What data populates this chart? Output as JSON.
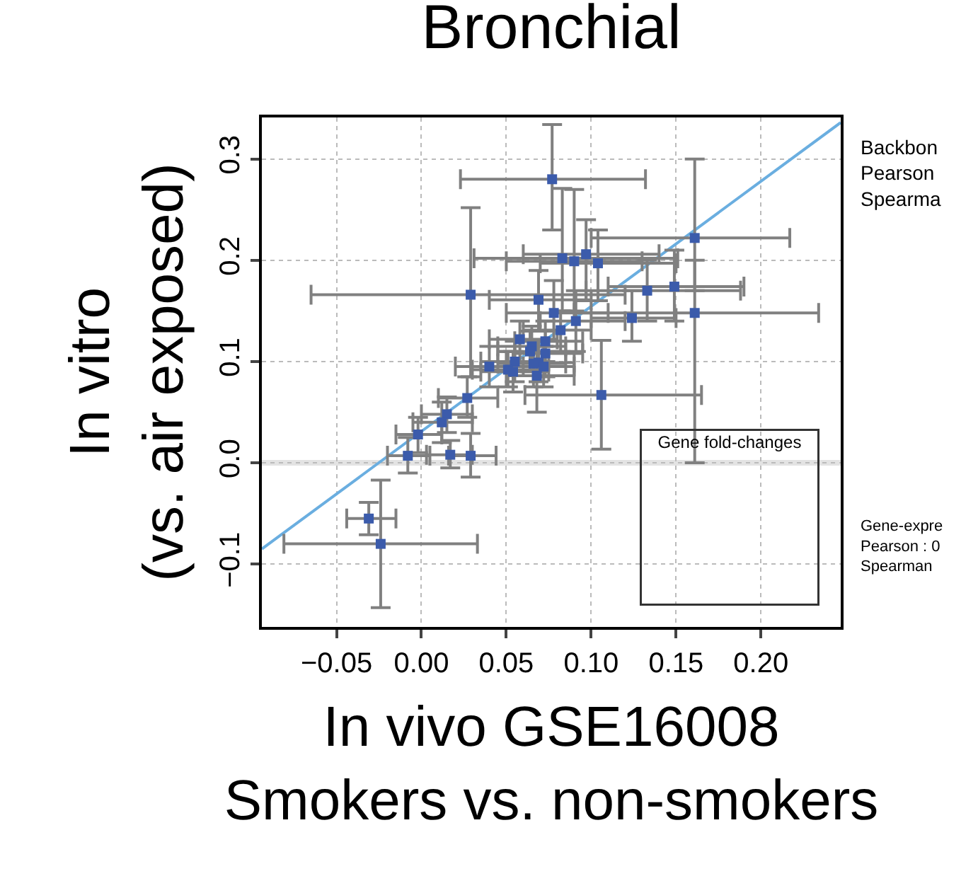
{
  "chart_data": [
    {
      "type": "scatter",
      "title": "Bronchial",
      "xlabel": "In vivo GSE16008\nSmokers vs. non-smokers",
      "ylabel": "In vitro\n(vs. air exposed)",
      "xlim": [
        -0.094,
        0.247
      ],
      "ylim": [
        -0.162,
        0.341
      ],
      "xticks": [
        {
          "value": -0.05,
          "label": "−0.05"
        },
        {
          "value": 0,
          "label": "0.00"
        },
        {
          "value": 0.05,
          "label": "0.05"
        },
        {
          "value": 0.1,
          "label": "0.10"
        },
        {
          "value": 0.15,
          "label": "0.15"
        },
        {
          "value": 0.2,
          "label": "0.20"
        }
      ],
      "yticks": [
        {
          "value": -0.1,
          "label": "−0.1"
        },
        {
          "value": 0,
          "label": "0.0"
        },
        0.1,
        0.2,
        0.3
      ],
      "grid": true,
      "marker": "square",
      "ref_lines": [
        {
          "axis": "y",
          "value": 0,
          "color": "#e3e3e3"
        }
      ],
      "series": [
        {
          "type": "scatter",
          "color": "#3b5bab",
          "x": [
            0.077,
            0.161,
            0.161,
            0.029,
            0.083,
            0.09,
            0.097,
            0.104,
            0.133,
            0.149,
            0.124,
            0.069,
            0.078,
            0.091,
            0.082,
            0.058,
            0.065,
            0.073,
            0.064,
            0.073,
            0.055,
            0.04,
            0.051,
            0.054,
            0.066,
            0.069,
            0.072,
            0.068,
            0.106,
            0.027,
            0.015,
            0.012,
            -0.002,
            -0.008,
            0.017,
            0.029,
            -0.031,
            -0.024
          ],
          "values": [
            0.28,
            0.222,
            0.148,
            0.166,
            0.202,
            0.199,
            0.206,
            0.197,
            0.17,
            0.174,
            0.143,
            0.161,
            0.148,
            0.14,
            0.131,
            0.122,
            0.115,
            0.12,
            0.11,
            0.108,
            0.1,
            0.095,
            0.092,
            0.09,
            0.098,
            0.099,
            0.095,
            0.086,
            0.067,
            0.064,
            0.048,
            0.04,
            0.028,
            0.007,
            0.008,
            0.007,
            -0.055,
            -0.08
          ],
          "xerrors": [
            [
              0.023,
              0.132
            ],
            [
              0.1,
              0.217
            ],
            [
              0.09,
              0.234
            ],
            [
              -0.065,
              0.12
            ],
            [
              0.031,
              0.151
            ],
            [
              0.05,
              0.13
            ],
            [
              0.06,
              0.14
            ],
            [
              0.07,
              0.15
            ],
            [
              0.097,
              0.188
            ],
            [
              0.11,
              0.19
            ],
            [
              0.1,
              0.15
            ],
            [
              0.04,
              0.1
            ],
            [
              0.05,
              0.11
            ],
            [
              0.07,
              0.12
            ],
            [
              0.06,
              0.1
            ],
            [
              0.04,
              0.08
            ],
            [
              0.045,
              0.085
            ],
            [
              0.055,
              0.095
            ],
            [
              0.045,
              0.085
            ],
            [
              0.055,
              0.095
            ],
            [
              0.035,
              0.075
            ],
            [
              0.02,
              0.06
            ],
            [
              0.03,
              0.07
            ],
            [
              0.035,
              0.075
            ],
            [
              0.045,
              0.085
            ],
            [
              0.05,
              0.09
            ],
            [
              0.055,
              0.09
            ],
            [
              0.05,
              0.09
            ],
            [
              0.061,
              0.165
            ],
            [
              0.01,
              0.045
            ],
            [
              0.0,
              0.03
            ],
            [
              -0.005,
              0.03
            ],
            [
              -0.015,
              0.012
            ],
            [
              -0.02,
              0.005
            ],
            [
              0.003,
              0.03
            ],
            [
              0.016,
              0.044
            ],
            [
              -0.044,
              -0.015
            ],
            [
              -0.081,
              0.033
            ]
          ],
          "errors": [
            [
              0.23,
              0.334
            ],
            [
              0.17,
              0.3
            ],
            [
              0.0,
              0.2
            ],
            [
              0.085,
              0.252
            ],
            [
              0.15,
              0.271
            ],
            [
              0.15,
              0.27
            ],
            [
              0.16,
              0.24
            ],
            [
              0.16,
              0.23
            ],
            [
              0.14,
              0.2
            ],
            [
              0.14,
              0.21
            ],
            [
              0.12,
              0.17
            ],
            [
              0.13,
              0.19
            ],
            [
              0.12,
              0.18
            ],
            [
              0.11,
              0.17
            ],
            [
              0.11,
              0.15
            ],
            [
              0.1,
              0.14
            ],
            [
              0.095,
              0.135
            ],
            [
              0.1,
              0.14
            ],
            [
              0.09,
              0.13
            ],
            [
              0.085,
              0.13
            ],
            [
              0.08,
              0.12
            ],
            [
              0.075,
              0.115
            ],
            [
              0.075,
              0.11
            ],
            [
              0.07,
              0.11
            ],
            [
              0.075,
              0.12
            ],
            [
              0.08,
              0.12
            ],
            [
              0.075,
              0.115
            ],
            [
              0.05,
              0.12
            ],
            [
              0.0135,
              0.121
            ],
            [
              0.045,
              0.085
            ],
            [
              0.03,
              0.065
            ],
            [
              0.02,
              0.06
            ],
            [
              0.01,
              0.045
            ],
            [
              -0.01,
              0.025
            ],
            [
              -0.005,
              0.022
            ],
            [
              -0.014,
              0.029
            ],
            [
              -0.071,
              -0.039
            ],
            [
              -0.143,
              -0.017
            ]
          ]
        },
        {
          "type": "line",
          "color": "#6aaee0",
          "x": [
            -0.094,
            0.247
          ],
          "values": [
            -0.085,
            0.336
          ],
          "marker": "none"
        }
      ],
      "annotations": [
        "Backbon\nPearson\nSpearma",
        "Gene-expre\nPearson : 0\nSpearman"
      ]
    },
    {
      "type": "other",
      "title": "Gene fold-changes"
    }
  ]
}
